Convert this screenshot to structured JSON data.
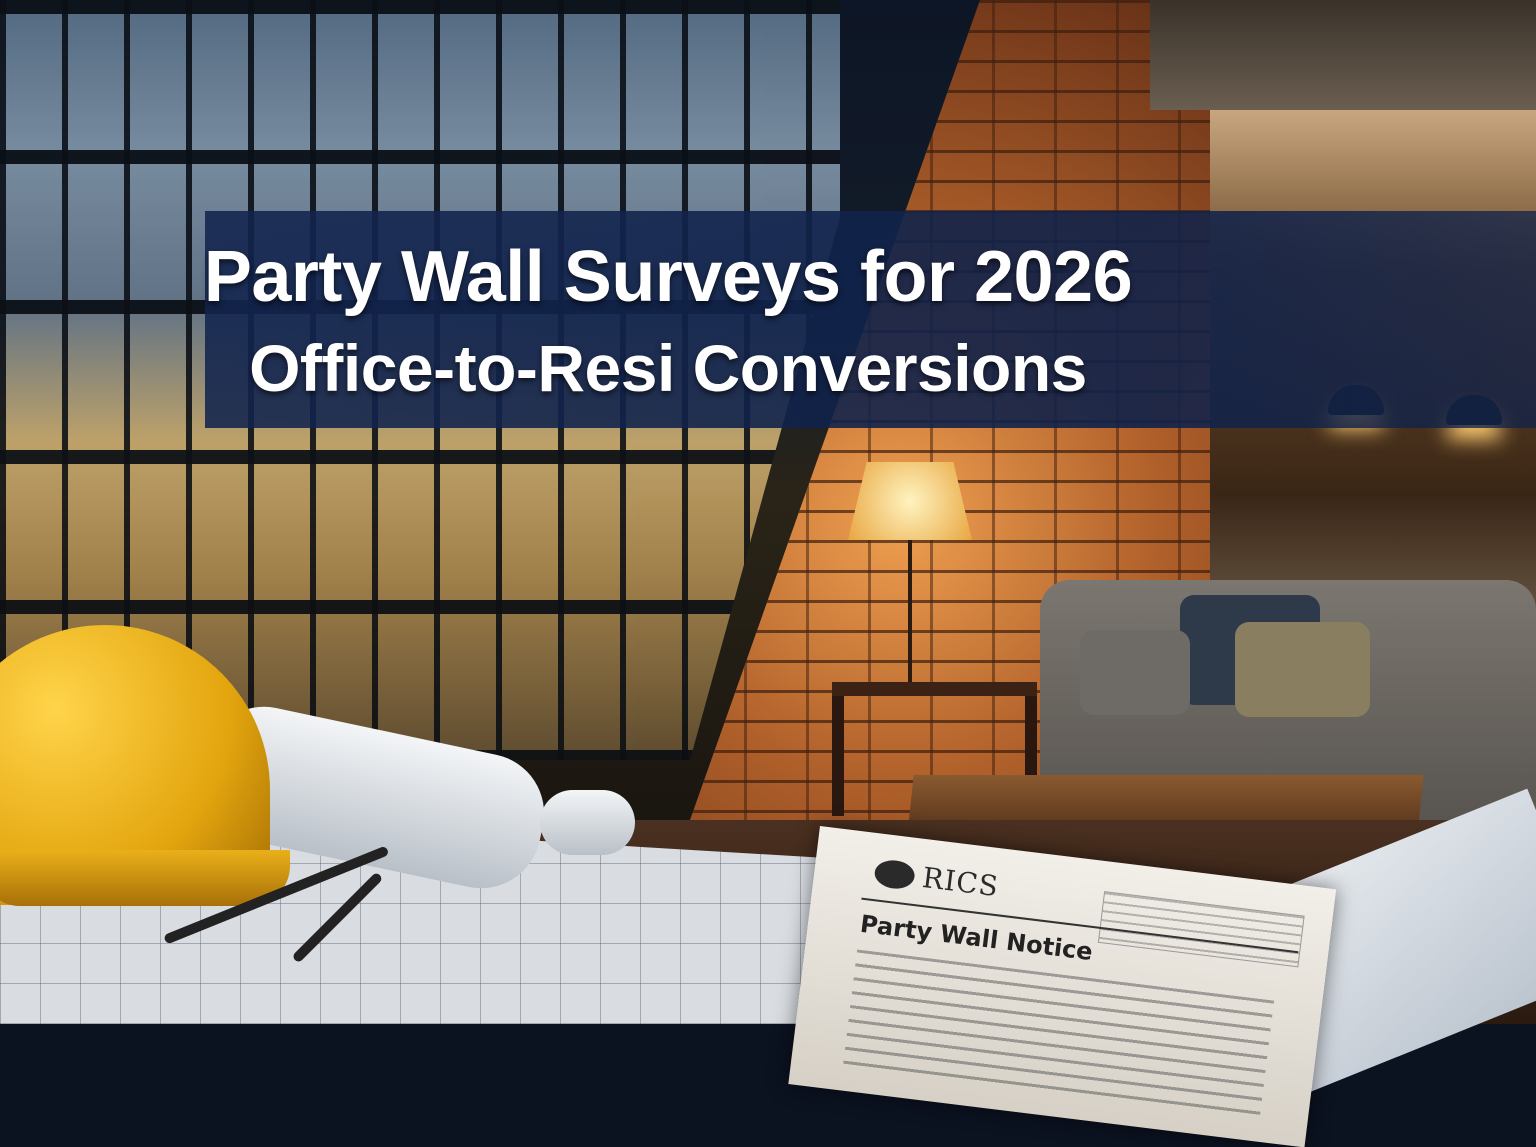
{
  "banner": {
    "title_line1": "Party Wall Surveys for 2026",
    "title_line2": "Office-to-Resi Conversions",
    "background_color": "#12244e"
  },
  "document": {
    "logo_text": "RICS",
    "heading": "Party Wall Notice"
  },
  "colors": {
    "helmet": "#e3a50e",
    "brick": "#b0602a",
    "night_sky": "#0b1322"
  }
}
